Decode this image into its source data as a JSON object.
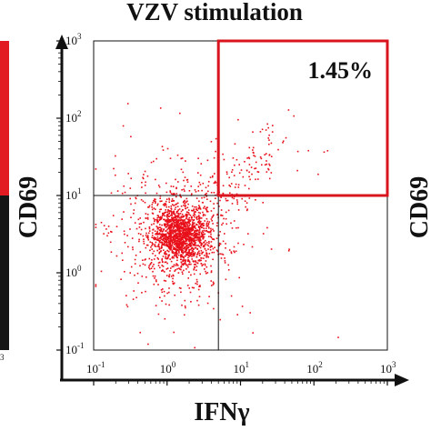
{
  "chart_data": {
    "type": "scatter",
    "title": "VZV stimulation",
    "xlabel": "IFNγ",
    "ylabel": "CD69",
    "right_ylabel": "CD69",
    "x_scale": "log",
    "y_scale": "log",
    "xlim": [
      0.1,
      1000
    ],
    "ylim": [
      0.1,
      1000
    ],
    "x_ticks": [
      {
        "base": "10",
        "exp": "-1"
      },
      {
        "base": "10",
        "exp": "0"
      },
      {
        "base": "10",
        "exp": "1"
      },
      {
        "base": "10",
        "exp": "2"
      },
      {
        "base": "10",
        "exp": "3"
      }
    ],
    "y_ticks": [
      {
        "base": "10",
        "exp": "-1"
      },
      {
        "base": "10",
        "exp": "0"
      },
      {
        "base": "10",
        "exp": "1"
      },
      {
        "base": "10",
        "exp": "2"
      },
      {
        "base": "10",
        "exp": "3"
      }
    ],
    "left_edge_tick": {
      "base": "",
      "exp": "3"
    },
    "quadrant_gate": {
      "x": 5,
      "y": 10
    },
    "positive_gate": {
      "x_range": [
        5,
        1000
      ],
      "y_range": [
        10,
        1000
      ],
      "percent_label": "1.45%"
    },
    "series": [
      {
        "color": "#e8101a",
        "cluster_center": [
          1.5,
          3.0
        ],
        "approx_events": 2200
      }
    ],
    "colors": {
      "events": "#e8101a",
      "gate": "#d9141e",
      "axis": "#111111"
    }
  }
}
